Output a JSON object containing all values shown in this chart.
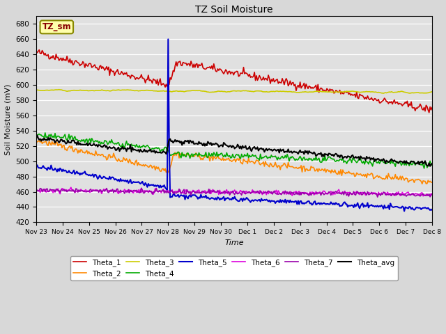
{
  "title": "TZ Soil Moisture",
  "xlabel": "Time",
  "ylabel": "Soil Moisture (mV)",
  "ylim": [
    420,
    690
  ],
  "yticks": [
    420,
    440,
    460,
    480,
    500,
    520,
    540,
    560,
    580,
    600,
    620,
    640,
    660,
    680
  ],
  "background_color": "#d8d8d8",
  "plot_bg_color": "#e0e0e0",
  "legend_label": "TZ_sm",
  "series_colors": {
    "Theta_1": "#cc0000",
    "Theta_2": "#ff8800",
    "Theta_3": "#cccc00",
    "Theta_4": "#00aa00",
    "Theta_5": "#0000cc",
    "Theta_6": "#dd00dd",
    "Theta_7": "#9900aa",
    "Theta_avg": "#000000"
  },
  "dates": [
    "Nov 23",
    "Nov 24",
    "Nov 25",
    "Nov 26",
    "Nov 27",
    "Nov 28",
    "Nov 29",
    "Nov 30",
    "Dec 1",
    "Dec 2",
    "Dec 3",
    "Dec 4",
    "Dec 5",
    "Dec 6",
    "Dec 7",
    "Dec 8"
  ]
}
